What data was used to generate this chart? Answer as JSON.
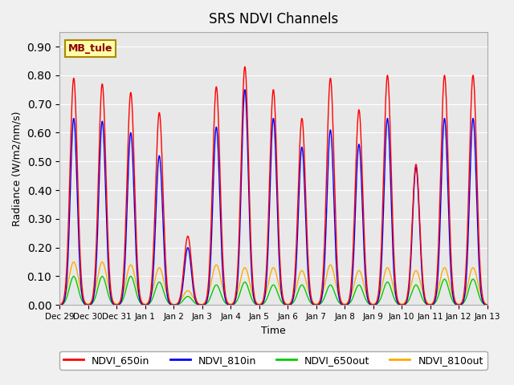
{
  "title": "SRS NDVI Channels",
  "xlabel": "Time",
  "ylabel": "Radiance (W/m2/nm/s)",
  "ylim": [
    0.0,
    0.95
  ],
  "annotation": "MB_tule",
  "background_color": "#e8e8e8",
  "colors": {
    "NDVI_650in": "#ff0000",
    "NDVI_810in": "#0000ff",
    "NDVI_650out": "#00cc00",
    "NDVI_810out": "#ffaa00"
  },
  "tick_labels": [
    "Dec 29",
    "Dec 30",
    "Dec 31",
    "Jan 1",
    "Jan 2",
    "Jan 3",
    "Jan 4",
    "Jan 5",
    "Jan 6",
    "Jan 7",
    "Jan 8",
    "Jan 9",
    "Jan 10",
    "Jan 11",
    "Jan 12",
    "Jan 13"
  ],
  "daily_peaks_650in": [
    0.79,
    0.77,
    0.74,
    0.67,
    0.24,
    0.76,
    0.83,
    0.75,
    0.65,
    0.79,
    0.68,
    0.8,
    0.49,
    0.8,
    0.8
  ],
  "daily_peaks_810in": [
    0.65,
    0.64,
    0.6,
    0.52,
    0.2,
    0.62,
    0.75,
    0.65,
    0.55,
    0.61,
    0.56,
    0.65,
    0.48,
    0.65,
    0.65
  ],
  "daily_peaks_650out": [
    0.1,
    0.1,
    0.1,
    0.08,
    0.03,
    0.07,
    0.08,
    0.07,
    0.07,
    0.07,
    0.07,
    0.08,
    0.07,
    0.09,
    0.09
  ],
  "daily_peaks_810out": [
    0.15,
    0.15,
    0.14,
    0.13,
    0.05,
    0.14,
    0.13,
    0.13,
    0.12,
    0.14,
    0.12,
    0.13,
    0.12,
    0.13,
    0.13
  ],
  "points_per_day": 144
}
